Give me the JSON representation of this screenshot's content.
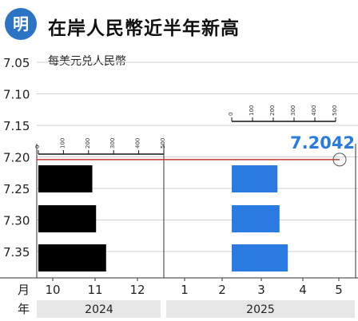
{
  "header": {
    "logo_text": "明",
    "title": "在岸人民幣近半年新高"
  },
  "chart_data": {
    "type": "bar",
    "subtitle": "每美元兑人民幣",
    "y_axis": {
      "ticks": [
        "7.05",
        "7.10",
        "7.15",
        "7.20",
        "7.25",
        "7.30",
        "7.35"
      ],
      "range": [
        7.35,
        7.05
      ],
      "inverted": true
    },
    "x_axis": {
      "month_label": "月",
      "year_label": "年",
      "months": [
        "10",
        "11",
        "12",
        "1",
        "2",
        "3",
        "4",
        "5"
      ],
      "years": [
        "2024",
        "2025"
      ]
    },
    "current": {
      "value": 7.2042,
      "label": "7.2042",
      "month": "5"
    },
    "scales": [
      {
        "ticks": [
          "0",
          "100",
          "200",
          "300",
          "400",
          "500"
        ]
      },
      {
        "ticks": [
          "0",
          "100",
          "200",
          "300",
          "400",
          "500"
        ]
      }
    ],
    "series": [
      {
        "year": "2024",
        "color": "#000000",
        "values": [
          215,
          230,
          270
        ]
      },
      {
        "year": "2025",
        "color": "#2a7ae2",
        "values": [
          220,
          230,
          270
        ]
      }
    ],
    "colors": {
      "reference_line": "#c0392b",
      "value_label": "#2a7ae2",
      "year_band": "#e6e6e6",
      "grid": "#cfcfcf"
    }
  }
}
